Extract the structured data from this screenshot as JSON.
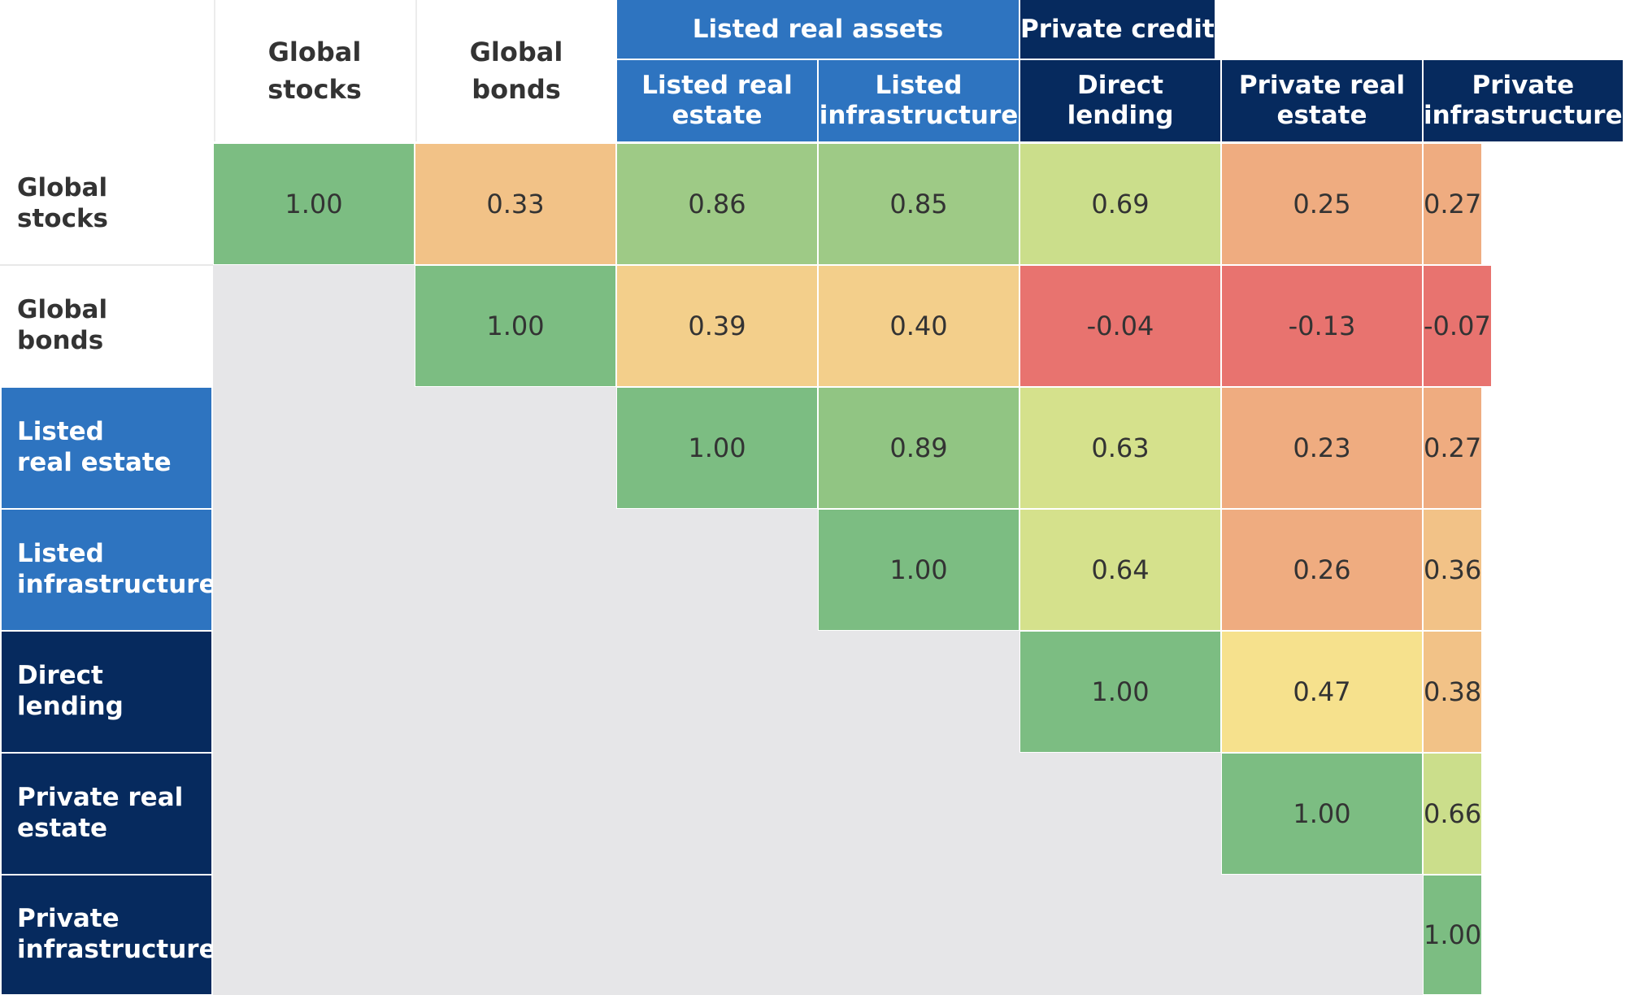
{
  "chart_data": {
    "type": "heatmap",
    "title": "",
    "groups": [
      {
        "label": "Listed real assets",
        "columns": [
          2,
          3
        ],
        "color": "#2E74C0"
      },
      {
        "label": "Private credit",
        "columns": [
          4,
          5,
          6
        ],
        "color": "#062A5E"
      }
    ],
    "columns": [
      "Global stocks",
      "Global bonds",
      "Listed real estate",
      "Listed infrastructure",
      "Direct lending",
      "Private real estate",
      "Private infrastructure"
    ],
    "column_lines": [
      [
        "Global",
        "stocks"
      ],
      [
        "Global",
        "bonds"
      ],
      [
        "Listed real",
        "estate"
      ],
      [
        "Listed",
        "infrastructure"
      ],
      [
        "Direct",
        "lending"
      ],
      [
        "Private real",
        "estate"
      ],
      [
        "Private",
        "infrastructure"
      ]
    ],
    "rows": [
      "Global stocks",
      "Global bonds",
      "Listed real estate",
      "Listed infrastructure",
      "Direct lending",
      "Private real estate",
      "Private infrastructure"
    ],
    "row_lines": [
      [
        "Global",
        "stocks"
      ],
      [
        "Global",
        "bonds"
      ],
      [
        "Listed",
        "real estate"
      ],
      [
        "Listed",
        "infrastructure"
      ],
      [
        "Direct",
        "lending"
      ],
      [
        "Private real",
        "estate"
      ],
      [
        "Private",
        "infrastructure"
      ]
    ],
    "header_colors": [
      "#FFFFFF",
      "#FFFFFF",
      "#2E74C0",
      "#2E74C0",
      "#062A5E",
      "#062A5E",
      "#062A5E"
    ],
    "header_text_colors": [
      "#333333",
      "#333333",
      "#FFFFFF",
      "#FFFFFF",
      "#FFFFFF",
      "#FFFFFF",
      "#FFFFFF"
    ],
    "values": [
      [
        "1.00",
        "0.33",
        "0.86",
        "0.85",
        "0.69",
        "0.25",
        "0.27"
      ],
      [
        null,
        "1.00",
        "0.39",
        "0.40",
        "-0.04",
        "-0.13",
        "-0.07"
      ],
      [
        null,
        null,
        "1.00",
        "0.89",
        "0.63",
        "0.23",
        "0.27"
      ],
      [
        null,
        null,
        null,
        "1.00",
        "0.64",
        "0.26",
        "0.36"
      ],
      [
        null,
        null,
        null,
        null,
        "1.00",
        "0.47",
        "0.38"
      ],
      [
        null,
        null,
        null,
        null,
        null,
        "1.00",
        "0.66"
      ],
      [
        null,
        null,
        null,
        null,
        null,
        null,
        "1.00"
      ]
    ],
    "cell_colors": [
      [
        "#7CBD82",
        "#F2C287",
        "#9ECA86",
        "#9ECA86",
        "#CBDE8B",
        "#EFAC80",
        "#EFAC80"
      ],
      [
        null,
        "#7CBD82",
        "#F3CF8B",
        "#F3CF8B",
        "#E8736F",
        "#E8736F",
        "#E8736F"
      ],
      [
        null,
        null,
        "#7CBD82",
        "#91C583",
        "#D5E18C",
        "#EFAC80",
        "#EFAC80"
      ],
      [
        null,
        null,
        null,
        "#7CBD82",
        "#D5E18C",
        "#EFAC80",
        "#F2C287"
      ],
      [
        null,
        null,
        null,
        null,
        "#7CBD82",
        "#F6E18D",
        "#F2C287"
      ],
      [
        null,
        null,
        null,
        null,
        null,
        "#7CBD82",
        "#CBDE8B"
      ],
      [
        null,
        null,
        null,
        null,
        null,
        null,
        "#7CBD82"
      ]
    ],
    "empty_color": "#E6E6E8"
  }
}
